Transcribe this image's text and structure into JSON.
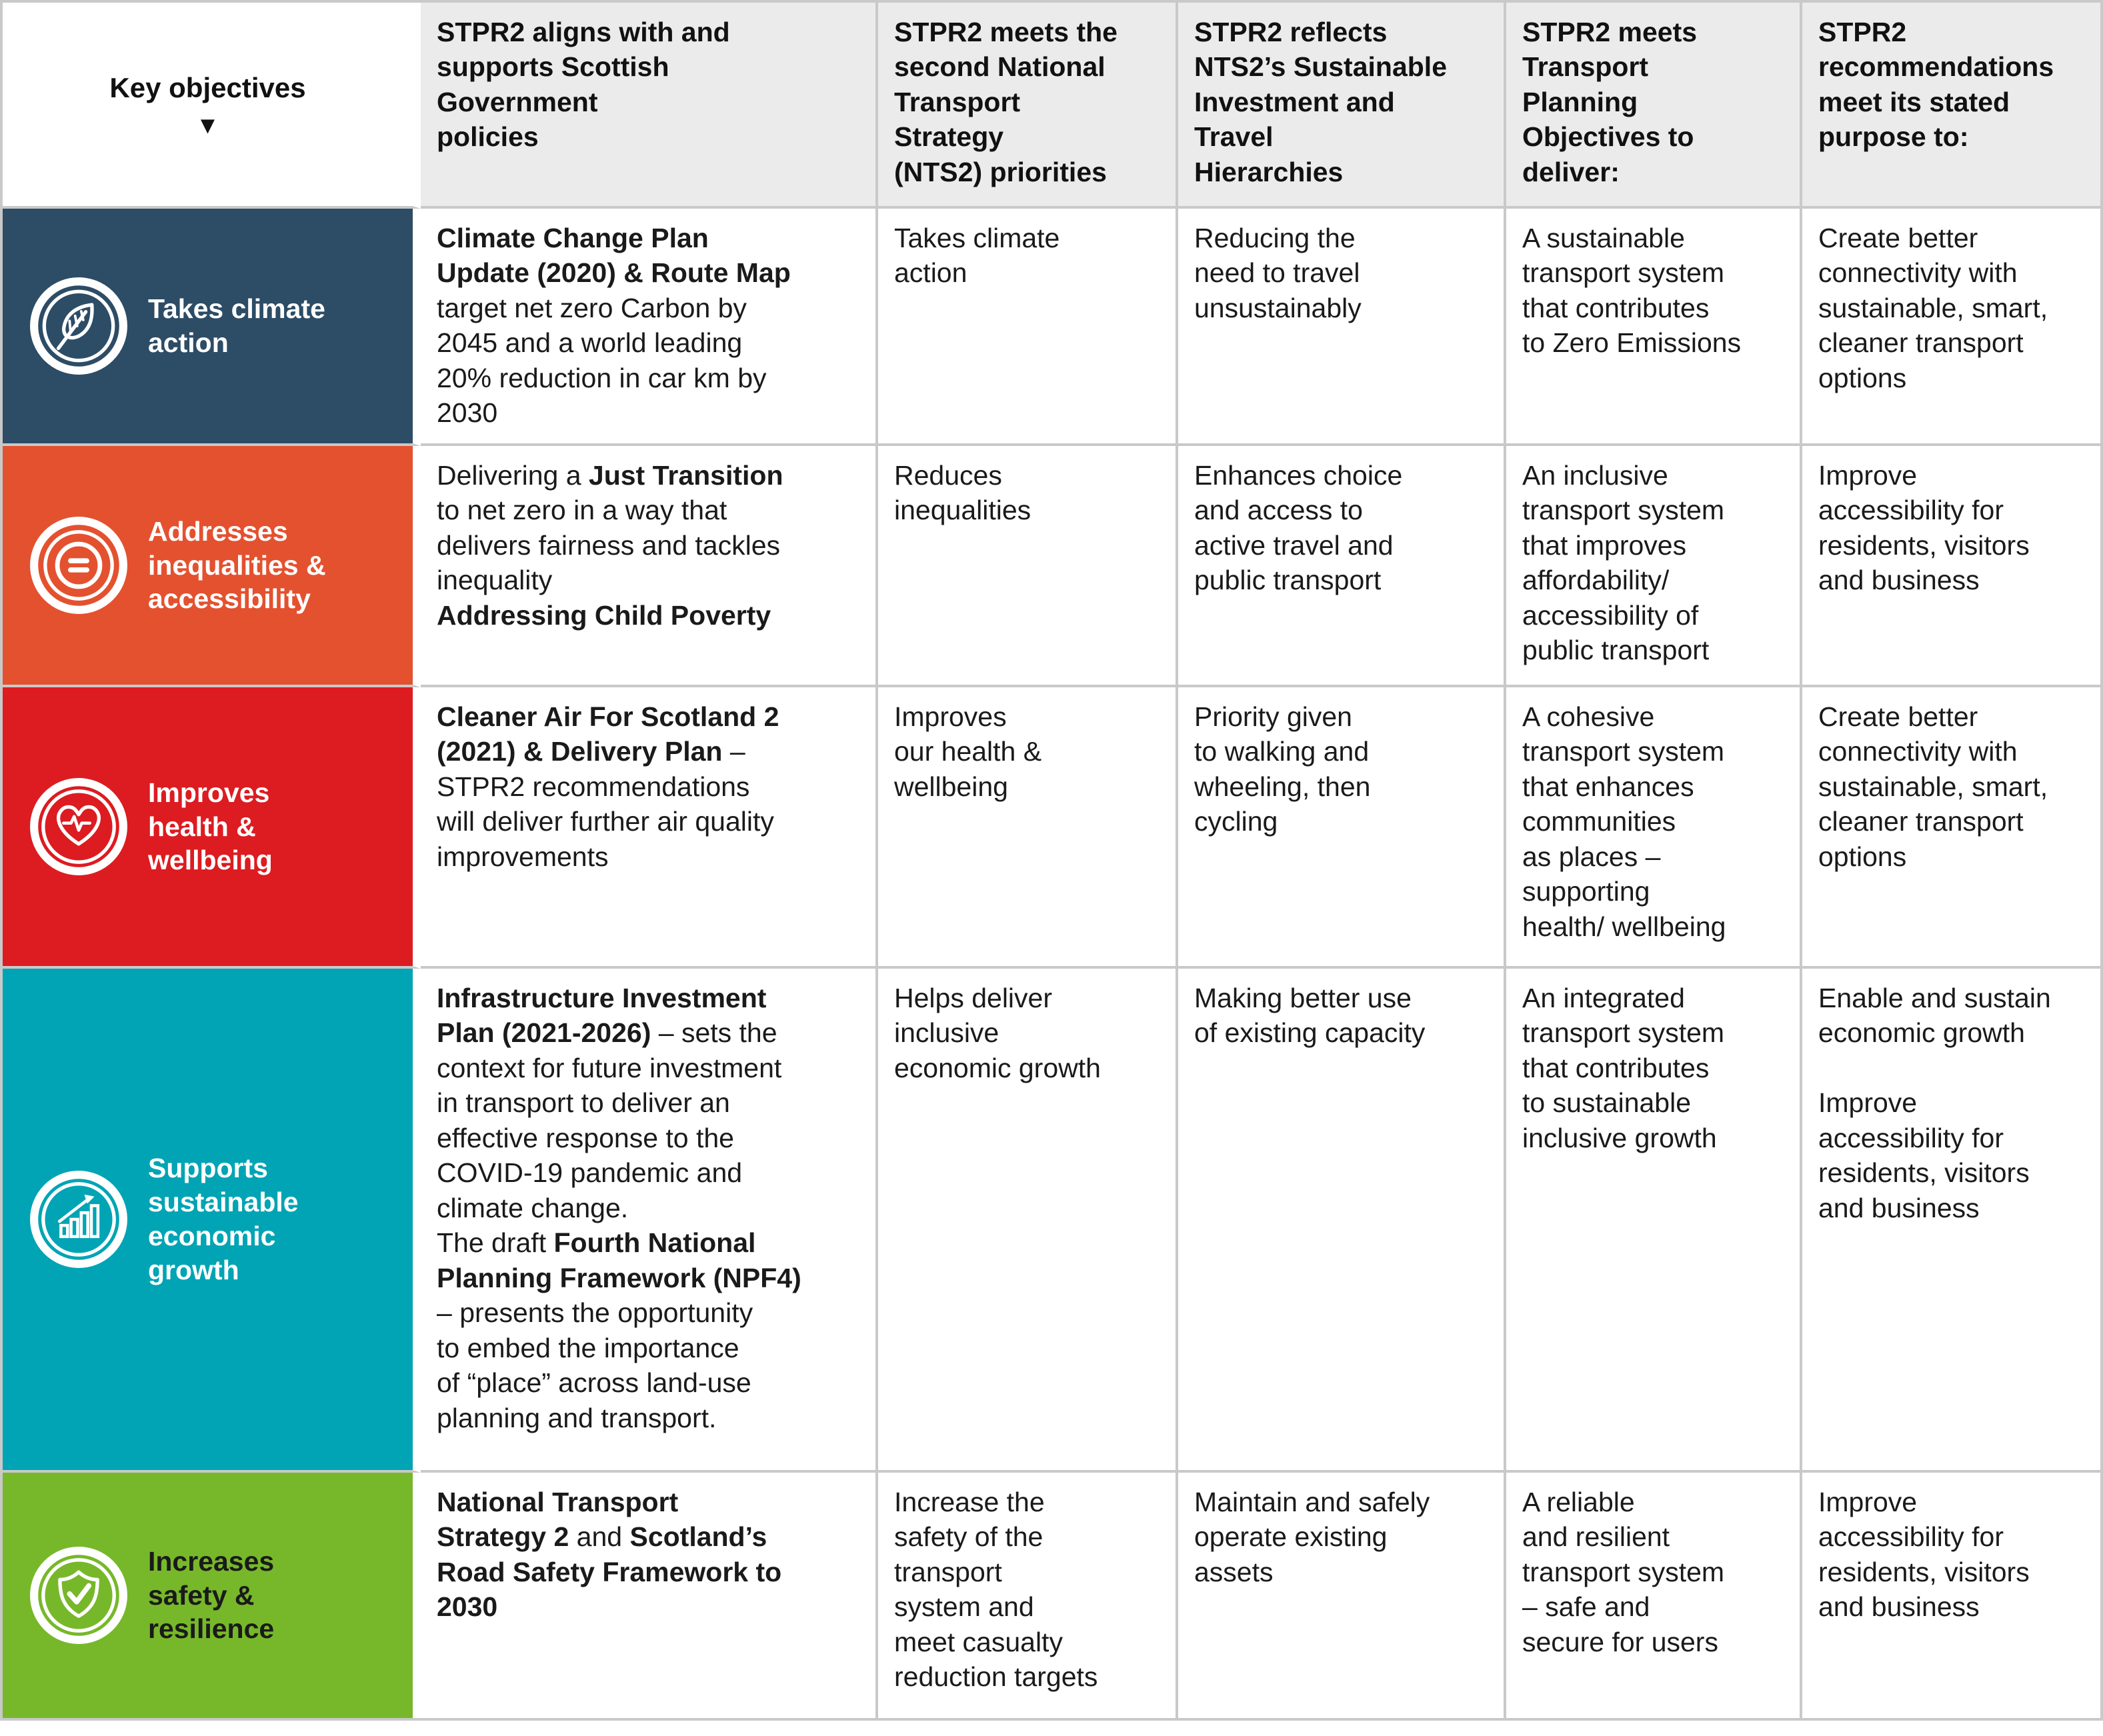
{
  "palette": {
    "grid_line": "#c9c9c9",
    "header_bg": "#ebebeb",
    "text": "#1a1a1a",
    "row_climate": "#2d4c66",
    "row_inequalities": "#e4512f",
    "row_health": "#dc1c21",
    "row_economic": "#00a4b4",
    "row_safety": "#77b82a"
  },
  "header": {
    "key_objectives": "Key objectives",
    "sort_arrow": "▼",
    "columns": [
      "STPR2 aligns with and\nsupports Scottish\nGovernment\npolicies",
      "STPR2 meets the\nsecond National\nTransport\nStrategy\n(NTS2) priorities",
      "STPR2 reflects\nNTS2’s Sustainable\nInvestment and\nTravel\nHierarchies",
      "STPR2 meets\nTransport\nPlanning\nObjectives to\ndeliver:",
      "STPR2\nrecommendations\nmeet its stated\npurpose to:"
    ]
  },
  "rows": [
    {
      "objective": {
        "label": "Takes climate\naction",
        "color": "#2d4c66",
        "label_color": "#ffffff",
        "icon": "leaf-icon"
      },
      "policies": [
        {
          "t": "Climate Change Plan\nUpdate (2020) & Route Map",
          "b": true
        },
        {
          "t": "\ntarget net zero Carbon by\n2045 and a world leading\n20% reduction in car km by\n2030",
          "b": false
        }
      ],
      "nts2": [
        {
          "t": "Takes climate\naction",
          "b": false
        }
      ],
      "hierarchies": [
        {
          "t": "Reducing the\nneed to travel\nunsustainably",
          "b": false
        }
      ],
      "tpo": [
        {
          "t": "A sustainable\ntransport system\nthat contributes\nto Zero Emissions",
          "b": false
        }
      ],
      "purpose": [
        {
          "t": "Create better\nconnectivity with\nsustainable, smart,\ncleaner transport\noptions",
          "b": false
        }
      ]
    },
    {
      "objective": {
        "label": "Addresses\ninequalities &\naccessibility",
        "color": "#e4512f",
        "label_color": "#ffffff",
        "icon": "equality-icon"
      },
      "policies": [
        {
          "t": "Delivering a ",
          "b": false
        },
        {
          "t": "Just Transition",
          "b": true
        },
        {
          "t": "\nto net zero in a way that\ndelivers fairness and tackles\ninequality\n",
          "b": false
        },
        {
          "t": "Addressing Child Poverty",
          "b": true
        }
      ],
      "nts2": [
        {
          "t": "Reduces\ninequalities",
          "b": false
        }
      ],
      "hierarchies": [
        {
          "t": "Enhances choice\nand access to\nactive travel and\npublic transport",
          "b": false
        }
      ],
      "tpo": [
        {
          "t": "An inclusive\ntransport system\nthat improves\naffordability/\naccessibility of\npublic transport",
          "b": false
        }
      ],
      "purpose": [
        {
          "t": "Improve\naccessibility for\nresidents, visitors\nand business",
          "b": false
        }
      ]
    },
    {
      "objective": {
        "label": "Improves\nhealth &\nwellbeing",
        "color": "#dc1c21",
        "label_color": "#ffffff",
        "icon": "heart-pulse-icon"
      },
      "policies": [
        {
          "t": "Cleaner Air For Scotland 2\n(2021) & Delivery Plan",
          "b": true
        },
        {
          "t": " –\nSTPR2 recommendations\nwill deliver further air quality\nimprovements",
          "b": false
        }
      ],
      "nts2": [
        {
          "t": "Improves\nour health &\nwellbeing",
          "b": false
        }
      ],
      "hierarchies": [
        {
          "t": "Priority given\nto walking and\nwheeling, then\ncycling",
          "b": false
        }
      ],
      "tpo": [
        {
          "t": "A cohesive\ntransport system\nthat enhances\ncommunities\nas places –\nsupporting\nhealth/ wellbeing",
          "b": false
        }
      ],
      "purpose": [
        {
          "t": "Create better\nconnectivity with\nsustainable, smart,\ncleaner transport\noptions",
          "b": false
        }
      ]
    },
    {
      "objective": {
        "label": "Supports\nsustainable\neconomic\ngrowth",
        "color": "#00a4b4",
        "label_color": "#ffffff",
        "icon": "growth-chart-icon"
      },
      "policies": [
        {
          "t": "Infrastructure Investment\nPlan (2021-2026)",
          "b": true
        },
        {
          "t": " – sets the\ncontext for future investment\nin transport to deliver an\neffective response to the\nCOVID-19 pandemic and\nclimate change.\nThe draft ",
          "b": false
        },
        {
          "t": "Fourth National\nPlanning Framework (NPF4)",
          "b": true
        },
        {
          "t": "\n– presents the opportunity\nto embed the importance\nof “place” across land-use\nplanning and transport.",
          "b": false
        }
      ],
      "nts2": [
        {
          "t": "Helps deliver\ninclusive\neconomic growth",
          "b": false
        }
      ],
      "hierarchies": [
        {
          "t": "Making better use\nof existing capacity",
          "b": false
        }
      ],
      "tpo": [
        {
          "t": "An integrated\ntransport system\nthat contributes\nto sustainable\ninclusive growth",
          "b": false
        }
      ],
      "purpose": [
        {
          "t": "Enable and sustain\neconomic growth\n\nImprove\naccessibility for\nresidents, visitors\nand business",
          "b": false
        }
      ]
    },
    {
      "objective": {
        "label": "Increases\nsafety &\nresilience",
        "color": "#77b82a",
        "label_color": "#1a1a1a",
        "icon": "shield-check-icon"
      },
      "policies": [
        {
          "t": "National Transport\nStrategy 2",
          "b": true
        },
        {
          "t": " and ",
          "b": false
        },
        {
          "t": "Scotland’s\nRoad Safety Framework to\n2030",
          "b": true
        }
      ],
      "nts2": [
        {
          "t": "Increase the\nsafety of the\ntransport\nsystem and\nmeet casualty\nreduction targets",
          "b": false
        }
      ],
      "hierarchies": [
        {
          "t": "Maintain and safely\noperate existing\nassets",
          "b": false
        }
      ],
      "tpo": [
        {
          "t": "A reliable\nand resilient\ntransport system\n– safe and\nsecure for users",
          "b": false
        }
      ],
      "purpose": [
        {
          "t": "Improve\naccessibility for\nresidents, visitors\nand business",
          "b": false
        }
      ]
    }
  ]
}
